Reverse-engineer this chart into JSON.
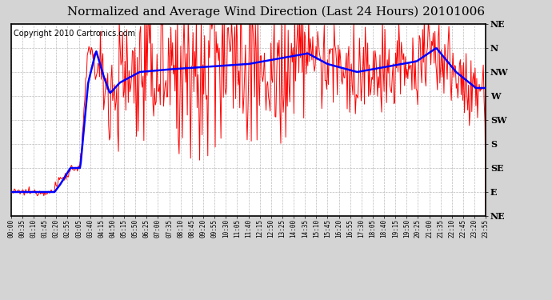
{
  "title": "Normalized and Average Wind Direction (Last 24 Hours) 20101006",
  "copyright": "Copyright 2010 Cartronics.com",
  "background_color": "#ffffff",
  "plot_bg_color": "#ffffff",
  "outer_bg_color": "#d4d4d4",
  "ytick_labels": [
    "NE",
    "N",
    "NW",
    "W",
    "SW",
    "S",
    "SE",
    "E",
    "NE"
  ],
  "ytick_values": [
    360,
    315,
    270,
    225,
    180,
    135,
    90,
    45,
    0
  ],
  "ylim": [
    0,
    360
  ],
  "xtick_labels": [
    "00:00",
    "00:35",
    "01:10",
    "01:45",
    "02:20",
    "02:55",
    "03:05",
    "03:40",
    "04:15",
    "04:50",
    "05:15",
    "05:50",
    "06:25",
    "07:00",
    "07:35",
    "08:10",
    "08:45",
    "09:20",
    "09:55",
    "10:30",
    "11:05",
    "11:40",
    "12:15",
    "12:50",
    "13:25",
    "14:00",
    "14:35",
    "15:10",
    "15:45",
    "16:20",
    "16:55",
    "17:30",
    "18:05",
    "18:40",
    "19:15",
    "19:50",
    "20:25",
    "21:00",
    "21:35",
    "22:10",
    "22:45",
    "23:20",
    "23:55"
  ],
  "red_color": "#ff0000",
  "blue_color": "#0000ff",
  "grid_color": "#bbbbbb",
  "title_fontsize": 11,
  "copyright_fontsize": 7,
  "axis_label_fontsize": 8,
  "border_color": "#000000"
}
